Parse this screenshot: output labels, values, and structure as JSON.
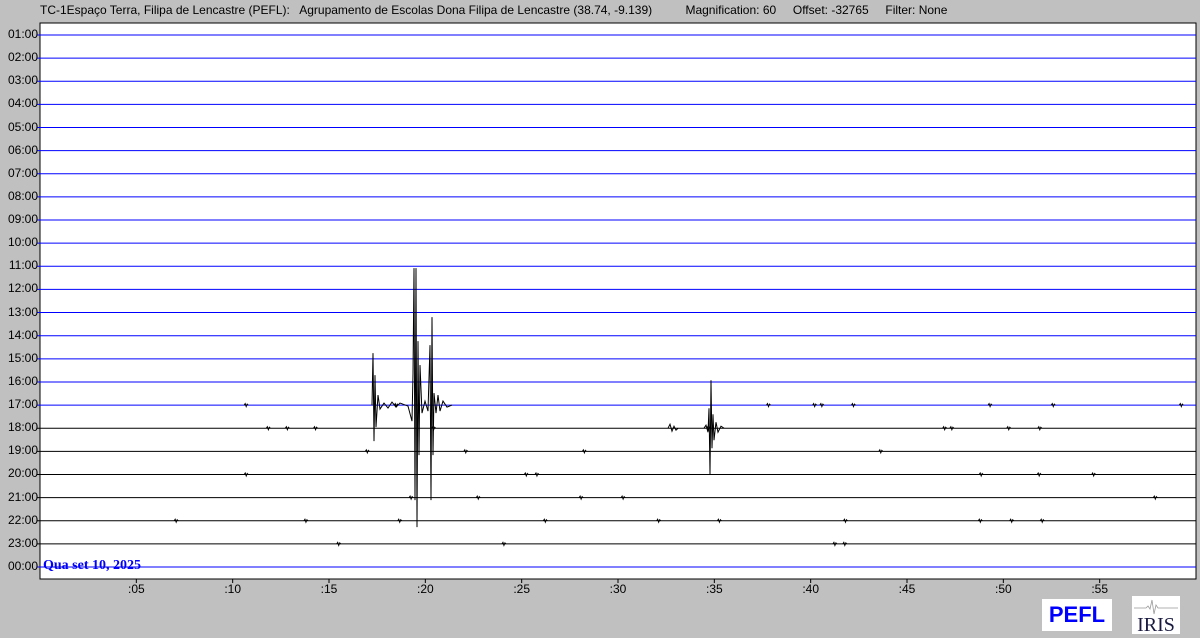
{
  "header": {
    "station": "TC-1Espaço Terra, Filipa de Lencastre (PEFL):",
    "location": "Agrupamento de Escolas Dona Filipa de Lencastre (38.74, -9.139)",
    "magnification": "Magnification: 60",
    "offset": "Offset: -32765",
    "filter": "Filter: None"
  },
  "date_label": "Qua set 10, 2025",
  "logos": {
    "pefl": "PEFL",
    "iris": "IRIS"
  },
  "colors": {
    "past_line": "#0000ff",
    "future_line": "#000000",
    "trace": "#000000",
    "background": "#c0c0c0"
  },
  "chart_data": {
    "type": "line",
    "row_labels": [
      "01:00",
      "02:00",
      "03:00",
      "04:00",
      "05:00",
      "06:00",
      "07:00",
      "08:00",
      "09:00",
      "10:00",
      "11:00",
      "12:00",
      "13:00",
      "14:00",
      "15:00",
      "16:00",
      "17:00",
      "18:00",
      "19:00",
      "20:00",
      "21:00",
      "22:00",
      "23:00",
      "00:00"
    ],
    "x_ticks": [
      ":05",
      ":10",
      ":15",
      ":20",
      ":25",
      ":30",
      ":35",
      ":40",
      ":45",
      ":50",
      ":55"
    ],
    "x_range_minutes": [
      0,
      60
    ],
    "blue_rows_through": "17:00",
    "events": [
      {
        "row": "17:00",
        "start_min": 17.2,
        "end_min": 21.2
      },
      {
        "row": "18:00",
        "start_min": 32.8,
        "end_min": 35.6
      }
    ]
  }
}
